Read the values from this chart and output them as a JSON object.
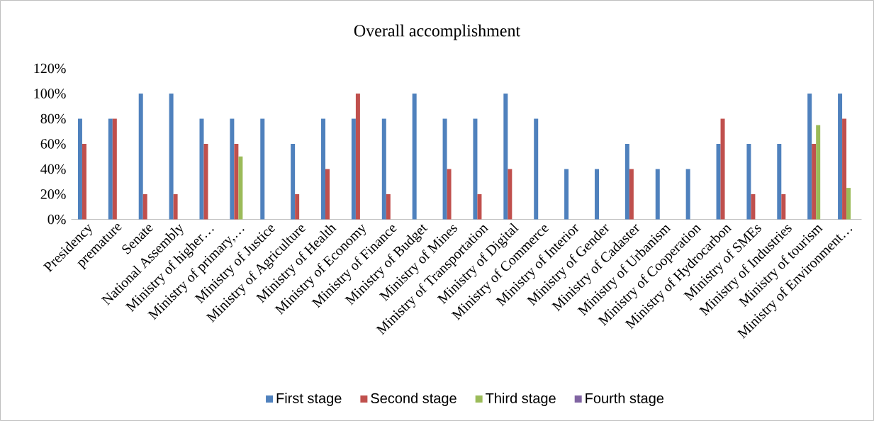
{
  "chart_data": {
    "type": "bar",
    "title": "Overall accomplishment",
    "categories": [
      "Presidency",
      "premature",
      "Senate",
      "National Assembly",
      "Ministry of higher…",
      "Ministry of primary,…",
      "Ministry of Justice",
      "Ministry of Agriculture",
      "Ministry of Health",
      "Ministry of Economy",
      "Ministry of Finance",
      "Ministry of Budget",
      "Ministry of Mines",
      "Ministry of Transportation",
      "Ministry of Digital",
      "Ministry of Commerce",
      "Ministry of Interior",
      "Ministry of Gender",
      "Ministry of Cadaster",
      "Ministry of Urbanism",
      "Ministry of Cooperation",
      "Ministry of Hydrocarbon",
      "Ministry of SMEs",
      "Ministry of Industries",
      "Ministry of tourism",
      "Ministry of Environment…"
    ],
    "series": [
      {
        "name": "First stage",
        "color": "#4f81bd",
        "values": [
          80,
          80,
          100,
          100,
          80,
          80,
          80,
          60,
          80,
          80,
          80,
          100,
          80,
          80,
          100,
          80,
          40,
          40,
          60,
          40,
          40,
          60,
          60,
          60,
          100,
          100
        ]
      },
      {
        "name": "Second stage",
        "color": "#c0504d",
        "values": [
          60,
          80,
          20,
          20,
          60,
          60,
          null,
          20,
          40,
          100,
          20,
          null,
          40,
          20,
          40,
          null,
          null,
          null,
          40,
          null,
          null,
          80,
          20,
          20,
          60,
          80
        ]
      },
      {
        "name": "Third stage",
        "color": "#9bbb59",
        "values": [
          null,
          null,
          null,
          null,
          null,
          50,
          null,
          null,
          null,
          null,
          null,
          null,
          null,
          null,
          null,
          null,
          null,
          null,
          null,
          null,
          null,
          null,
          null,
          null,
          75,
          25
        ]
      },
      {
        "name": "Fourth stage",
        "color": "#8064a2",
        "values": [
          null,
          null,
          null,
          null,
          null,
          null,
          null,
          null,
          null,
          null,
          null,
          null,
          null,
          null,
          null,
          null,
          null,
          null,
          null,
          null,
          null,
          null,
          null,
          null,
          null,
          null
        ]
      }
    ],
    "ylim": [
      0,
      120
    ],
    "yticks": [
      {
        "value": 0,
        "label": "0%"
      },
      {
        "value": 20,
        "label": "20%"
      },
      {
        "value": 40,
        "label": "40%"
      },
      {
        "value": 60,
        "label": "60%"
      },
      {
        "value": 80,
        "label": "80%"
      },
      {
        "value": 100,
        "label": "100%"
      },
      {
        "value": 120,
        "label": "120%"
      }
    ],
    "legend": "bottom"
  }
}
